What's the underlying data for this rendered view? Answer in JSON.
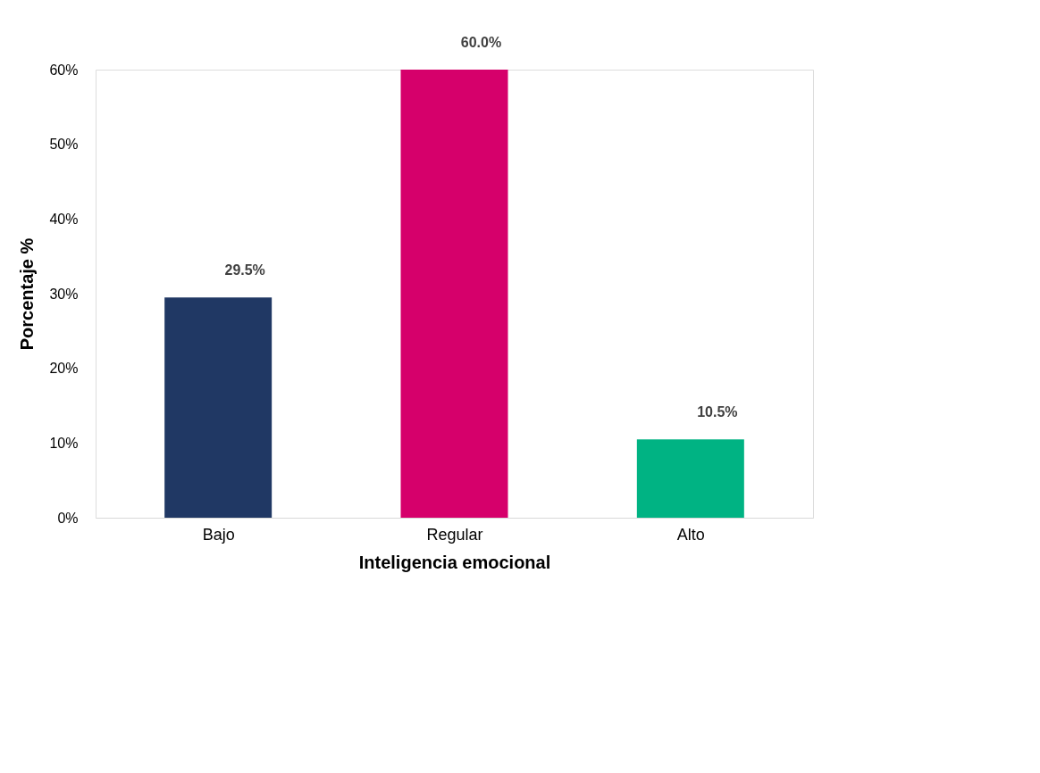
{
  "chart_data": {
    "type": "bar",
    "xlabel": "Inteligencia emocional",
    "ylabel": "Porcentaje %",
    "categories": [
      "Bajo",
      "Regular",
      "Alto"
    ],
    "values": [
      29.5,
      60.0,
      10.5
    ],
    "colors": [
      "#203864",
      "#d6006b",
      "#00b383"
    ],
    "value_labels": [
      "29.5%",
      "60.0%",
      "10.5%"
    ],
    "ylim": [
      0,
      60
    ],
    "yticks": [
      {
        "value": 0,
        "label": "0%"
      },
      {
        "value": 10,
        "label": "10%"
      },
      {
        "value": 20,
        "label": "20%"
      },
      {
        "value": 30,
        "label": "30%"
      },
      {
        "value": 40,
        "label": "40%"
      },
      {
        "value": 50,
        "label": "50%"
      },
      {
        "value": 60,
        "label": "60%"
      }
    ],
    "grid": false
  }
}
